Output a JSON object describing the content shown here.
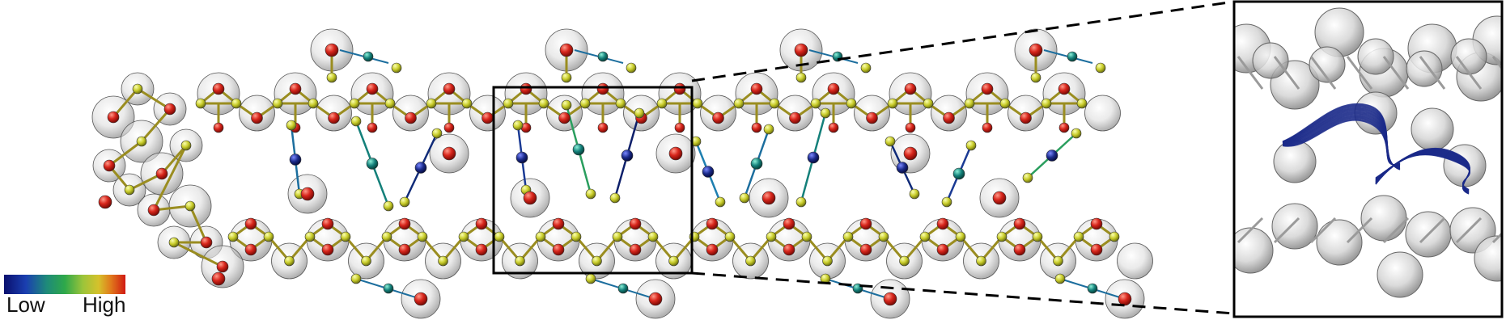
{
  "colorbar": {
    "low_label": "Low",
    "high_label": "High",
    "gradient": [
      "#0a0f6e",
      "#1a3fb0",
      "#1e8a7a",
      "#2ea84a",
      "#9cc43a",
      "#d6c12b",
      "#e07a1c",
      "#d11a12"
    ]
  },
  "colors": {
    "oxygen_atom": "#d8261c",
    "silicon_atom": "#c8cc2a",
    "bond_frame": "#9a8d20",
    "density_shell": "#b5b5b5",
    "zoom_lines": "#000000",
    "flux_lines": "#1b2a8a"
  },
  "chains": {
    "top_rings": 9,
    "bottom_rings": 8,
    "side_links": [
      "#1c6e9e",
      "#14807a",
      "#0f2a78",
      "#1a3a94",
      "#2a9e5e",
      "#0d1f6a",
      "#1e7fb0"
    ]
  }
}
